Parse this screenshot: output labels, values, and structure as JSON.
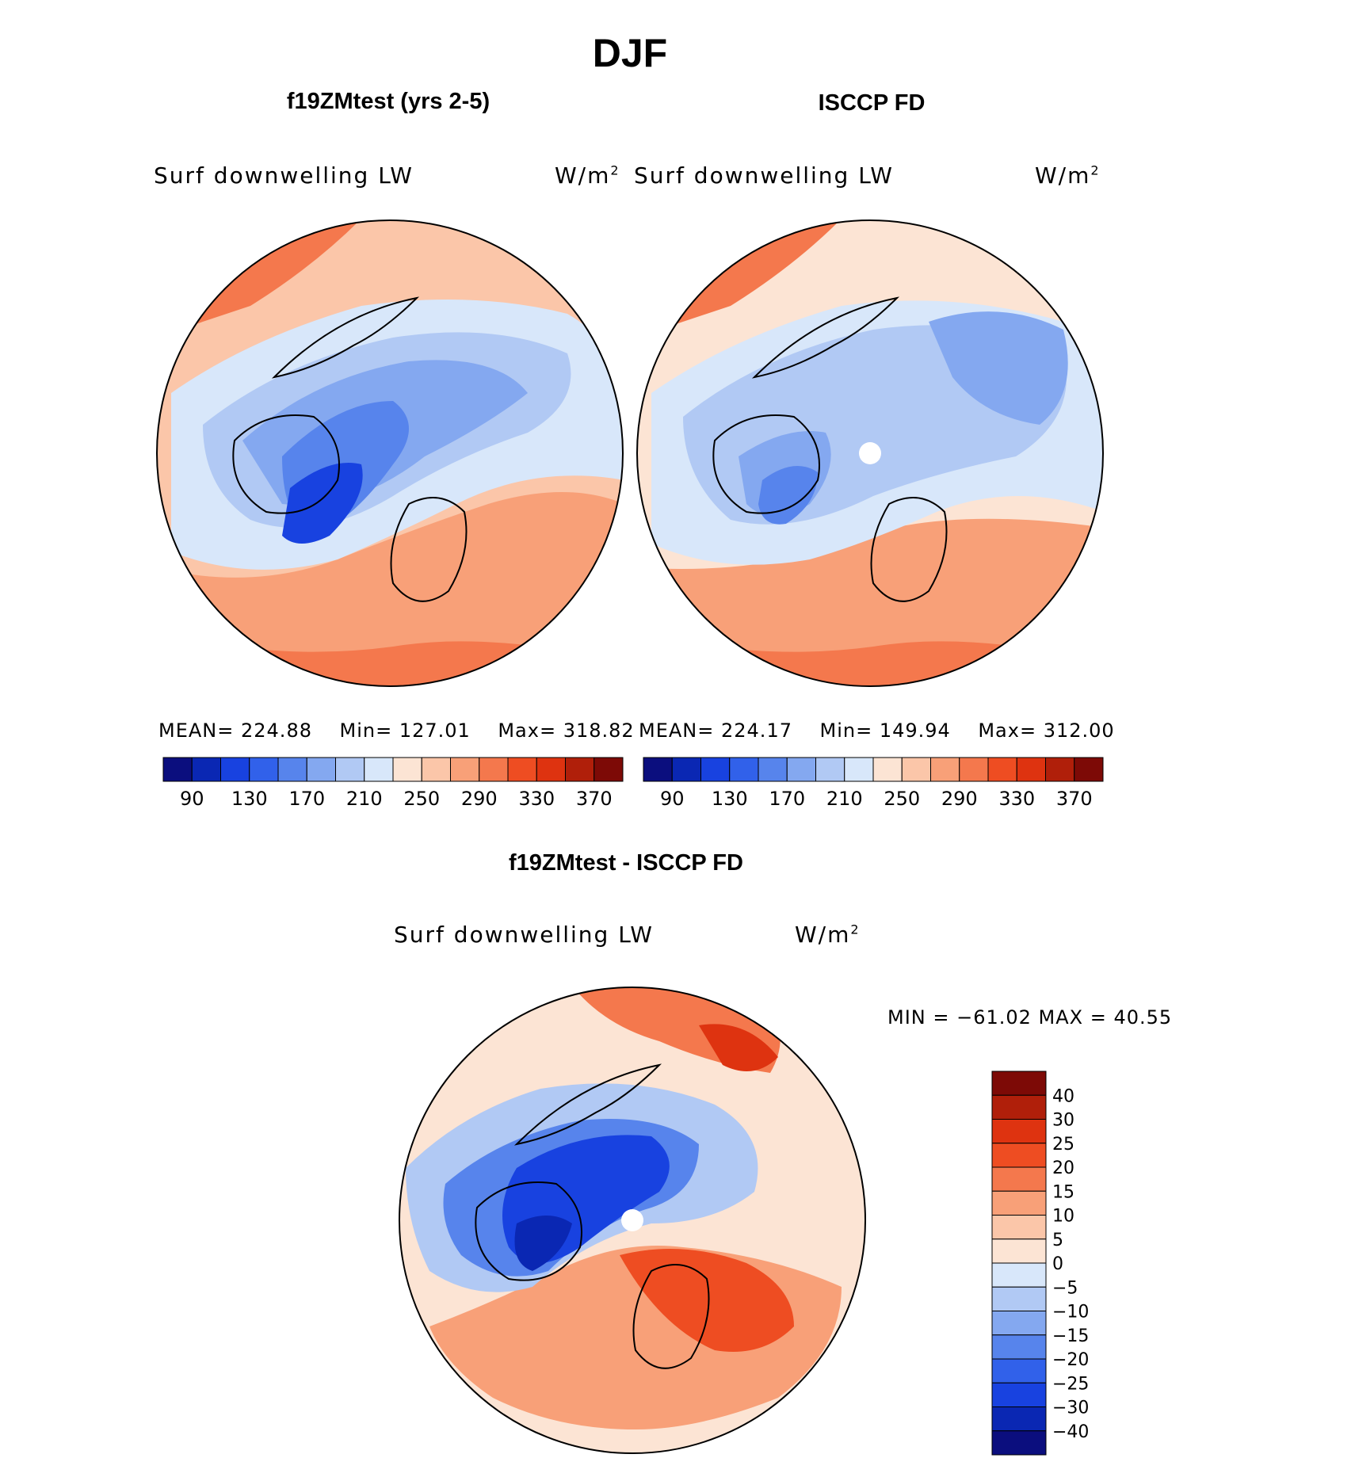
{
  "figure": {
    "season": "DJF",
    "panels": [
      {
        "title": "f19ZMtest (yrs 2-5)",
        "variable": "Surf downwelling LW",
        "units_base": "W/m",
        "units_exp": "2",
        "stats": {
          "mean_label": "MEAN=",
          "mean": "224.88",
          "min_label": "Min=",
          "min": "127.01",
          "max_label": "Max=",
          "max": "318.82"
        }
      },
      {
        "title": "ISCCP FD",
        "variable": "Surf downwelling LW",
        "units_base": "W/m",
        "units_exp": "2",
        "stats": {
          "mean_label": "MEAN=",
          "mean": "224.17",
          "min_label": "Min=",
          "min": "149.94",
          "max_label": "Max=",
          "max": "312.00"
        }
      },
      {
        "title": "f19ZMtest - ISCCP FD",
        "variable": "Surf downwelling LW",
        "units_base": "W/m",
        "units_exp": "2",
        "minmax_text": "MIN = −61.02 MAX =   40.55"
      }
    ]
  },
  "chart_data": [
    {
      "type": "heatmap",
      "projection": "north polar stereographic",
      "title": "f19ZMtest (yrs 2-5)",
      "variable": "Surf downwelling LW",
      "units": "W/m2",
      "mean": 224.88,
      "min": 127.01,
      "max": 318.82,
      "colorbar": {
        "levels": [
          90,
          110,
          130,
          150,
          170,
          190,
          210,
          230,
          250,
          270,
          290,
          310,
          330,
          350,
          370
        ],
        "tick_labels": [
          "90",
          "130",
          "170",
          "210",
          "250",
          "290",
          "330",
          "370"
        ],
        "colors": [
          "#0b0e7e",
          "#0a27b3",
          "#1842e0",
          "#3161ea",
          "#5784ec",
          "#84a8f0",
          "#b1c9f4",
          "#d8e7fa",
          "#fce4d4",
          "#fbc6a9",
          "#f8a078",
          "#f4784d",
          "#ee4d22",
          "#de3310",
          "#b01f0a",
          "#7d0a06"
        ]
      }
    },
    {
      "type": "heatmap",
      "projection": "north polar stereographic",
      "title": "ISCCP FD",
      "variable": "Surf downwelling LW",
      "units": "W/m2",
      "mean": 224.17,
      "min": 149.94,
      "max": 312.0,
      "colorbar": {
        "levels": [
          90,
          110,
          130,
          150,
          170,
          190,
          210,
          230,
          250,
          270,
          290,
          310,
          330,
          350,
          370
        ],
        "tick_labels": [
          "90",
          "130",
          "170",
          "210",
          "250",
          "290",
          "330",
          "370"
        ],
        "colors": [
          "#0b0e7e",
          "#0a27b3",
          "#1842e0",
          "#3161ea",
          "#5784ec",
          "#84a8f0",
          "#b1c9f4",
          "#d8e7fa",
          "#fce4d4",
          "#fbc6a9",
          "#f8a078",
          "#f4784d",
          "#ee4d22",
          "#de3310",
          "#b01f0a",
          "#7d0a06"
        ]
      }
    },
    {
      "type": "heatmap",
      "projection": "north polar stereographic",
      "title": "f19ZMtest - ISCCP FD",
      "variable": "Surf downwelling LW",
      "units": "W/m2",
      "min": -61.02,
      "max": 40.55,
      "colorbar": {
        "tick_labels_top_to_bottom": [
          "40",
          "30",
          "25",
          "20",
          "15",
          "10",
          "5",
          "0",
          "−5",
          "−10",
          "−15",
          "−20",
          "−25",
          "−30",
          "−40"
        ],
        "colors_top_to_bottom": [
          "#7d0a06",
          "#b01f0a",
          "#de3310",
          "#ee4d22",
          "#f4784d",
          "#f8a078",
          "#fbc6a9",
          "#fce4d4",
          "#d8e7fa",
          "#b1c9f4",
          "#84a8f0",
          "#5784ec",
          "#3161ea",
          "#1842e0",
          "#0a27b3",
          "#0b0e7e"
        ]
      }
    }
  ]
}
